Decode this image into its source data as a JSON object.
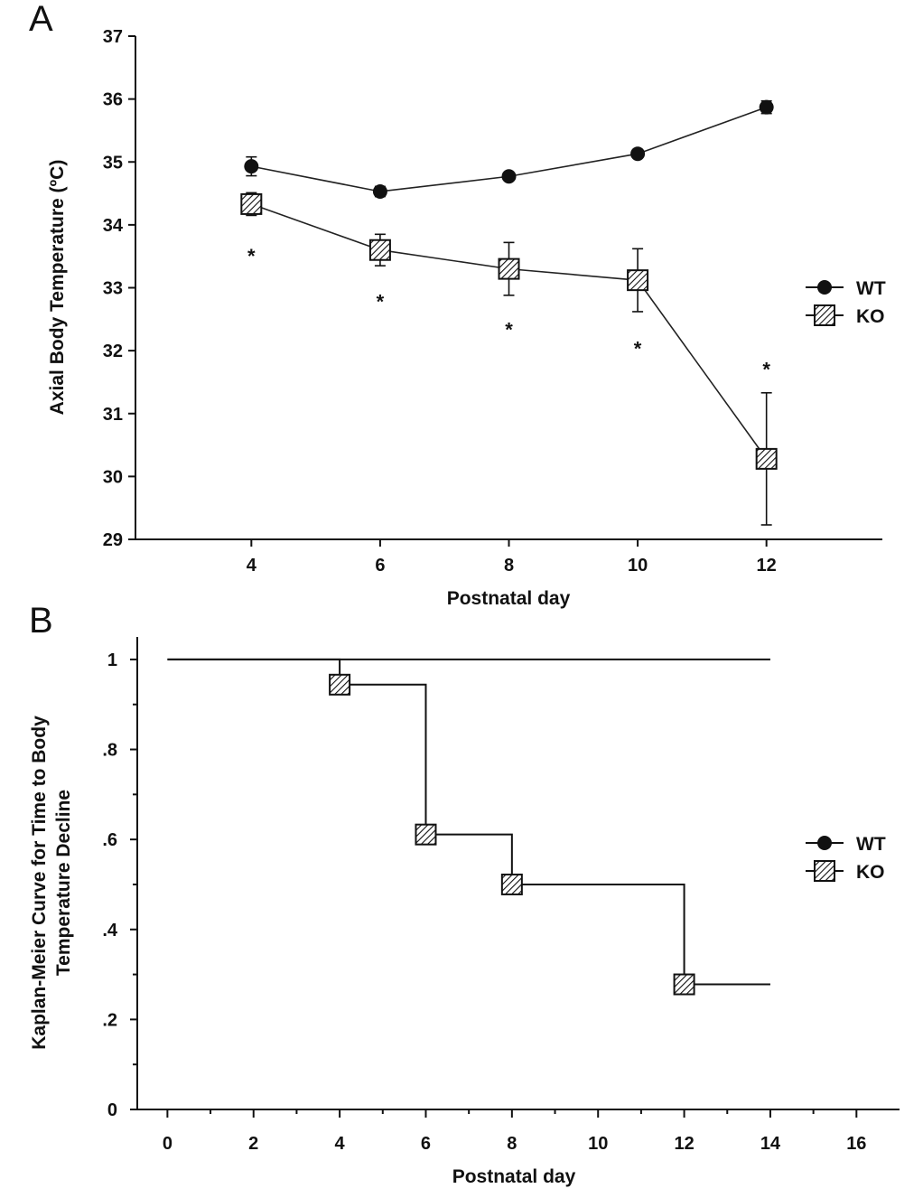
{
  "panel_labels": {
    "a": "A",
    "b": "B"
  },
  "colors": {
    "ink": "#111111",
    "background": "#ffffff",
    "hatch": "#111111"
  },
  "chart_data": [
    {
      "type": "line",
      "panel": "A",
      "xlabel": "Postnatal day",
      "ylabel": "Axial Body Temperature (ºC)",
      "xlim": [
        2.2,
        13.8
      ],
      "ylim": [
        29,
        37
      ],
      "x_ticks": [
        4,
        6,
        8,
        10,
        12
      ],
      "y_ticks": [
        29,
        30,
        31,
        32,
        33,
        34,
        35,
        36,
        37
      ],
      "grid": false,
      "legend_position": "right",
      "series": [
        {
          "name": "WT",
          "marker": "filled-circle",
          "x": [
            4,
            6,
            8,
            10,
            12
          ],
          "y": [
            34.93,
            34.53,
            34.77,
            35.13,
            35.87
          ],
          "error": [
            0.15,
            0.08,
            0.06,
            0.05,
            0.1
          ]
        },
        {
          "name": "KO",
          "marker": "hatched-square",
          "x": [
            4,
            6,
            8,
            10,
            12
          ],
          "y": [
            34.33,
            33.6,
            33.3,
            33.12,
            30.28
          ],
          "error": [
            0.18,
            0.25,
            0.42,
            0.5,
            1.05
          ]
        }
      ],
      "annotations": [
        {
          "text": "*",
          "x": 4,
          "y": 33.55
        },
        {
          "text": "*",
          "x": 6,
          "y": 32.83
        },
        {
          "text": "*",
          "x": 8,
          "y": 32.38
        },
        {
          "text": "*",
          "x": 10,
          "y": 32.08
        },
        {
          "text": "*",
          "x": 12,
          "y": 31.75
        }
      ]
    },
    {
      "type": "line",
      "panel": "B",
      "step": true,
      "xlabel": "Postnatal day",
      "ylabel": "Kaplan-Meier Curve for Time to Body Temperature Decline",
      "ylabel_lines": [
        "Kaplan-Meier Curve for Time to Body",
        "Temperature Decline"
      ],
      "xlim": [
        -0.7,
        17
      ],
      "ylim": [
        0,
        1.05
      ],
      "x_ticks": [
        0,
        2,
        4,
        6,
        8,
        10,
        12,
        14,
        16
      ],
      "y_ticks": [
        0,
        0.2,
        0.4,
        0.6,
        0.8,
        1
      ],
      "y_tick_labels": [
        "0",
        ".2",
        ".4",
        ".6",
        ".8",
        "1"
      ],
      "grid": false,
      "legend_position": "right",
      "series": [
        {
          "name": "WT",
          "marker": "filled-circle",
          "x": [
            0,
            14
          ],
          "y": [
            1,
            1
          ]
        },
        {
          "name": "KO",
          "marker": "hatched-square",
          "steps_x": [
            0,
            4,
            6,
            8,
            12,
            14
          ],
          "steps_y": [
            1,
            0.944,
            0.611,
            0.5,
            0.278,
            0.278
          ],
          "marker_points": [
            [
              4,
              0.944
            ],
            [
              6,
              0.611
            ],
            [
              8,
              0.5
            ],
            [
              12,
              0.278
            ]
          ]
        }
      ]
    }
  ]
}
